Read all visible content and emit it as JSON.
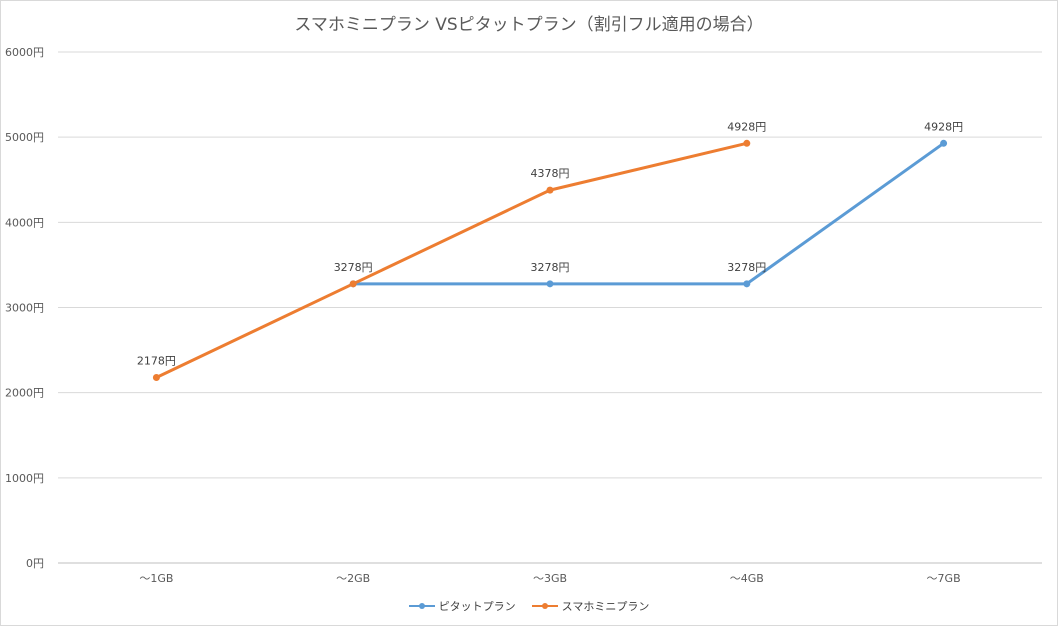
{
  "chart_data": {
    "type": "line",
    "title": "スマホミニプラン VSピタットプラン（割引フル適用の場合）",
    "xlabel": "",
    "ylabel": "",
    "categories": [
      "～1GB",
      "～2GB",
      "～3GB",
      "～4GB",
      "～7GB"
    ],
    "ylim": [
      0,
      6000
    ],
    "yticks": [
      "0円",
      "1000円",
      "2000円",
      "3000円",
      "4000円",
      "5000円",
      "6000円"
    ],
    "grid": true,
    "legend_position": "bottom",
    "series": [
      {
        "name": "ピタットプラン",
        "color": "#5b9bd5",
        "values": [
          null,
          3278,
          3278,
          3278,
          4928
        ],
        "labels": [
          null,
          "",
          "3278円",
          "3278円",
          "4928円"
        ]
      },
      {
        "name": "スマホミニプラン",
        "color": "#ed7d31",
        "values": [
          2178,
          3278,
          4378,
          4928,
          null
        ],
        "labels": [
          "2178円",
          "3278円",
          "4378円",
          "4928円",
          null
        ]
      }
    ]
  }
}
